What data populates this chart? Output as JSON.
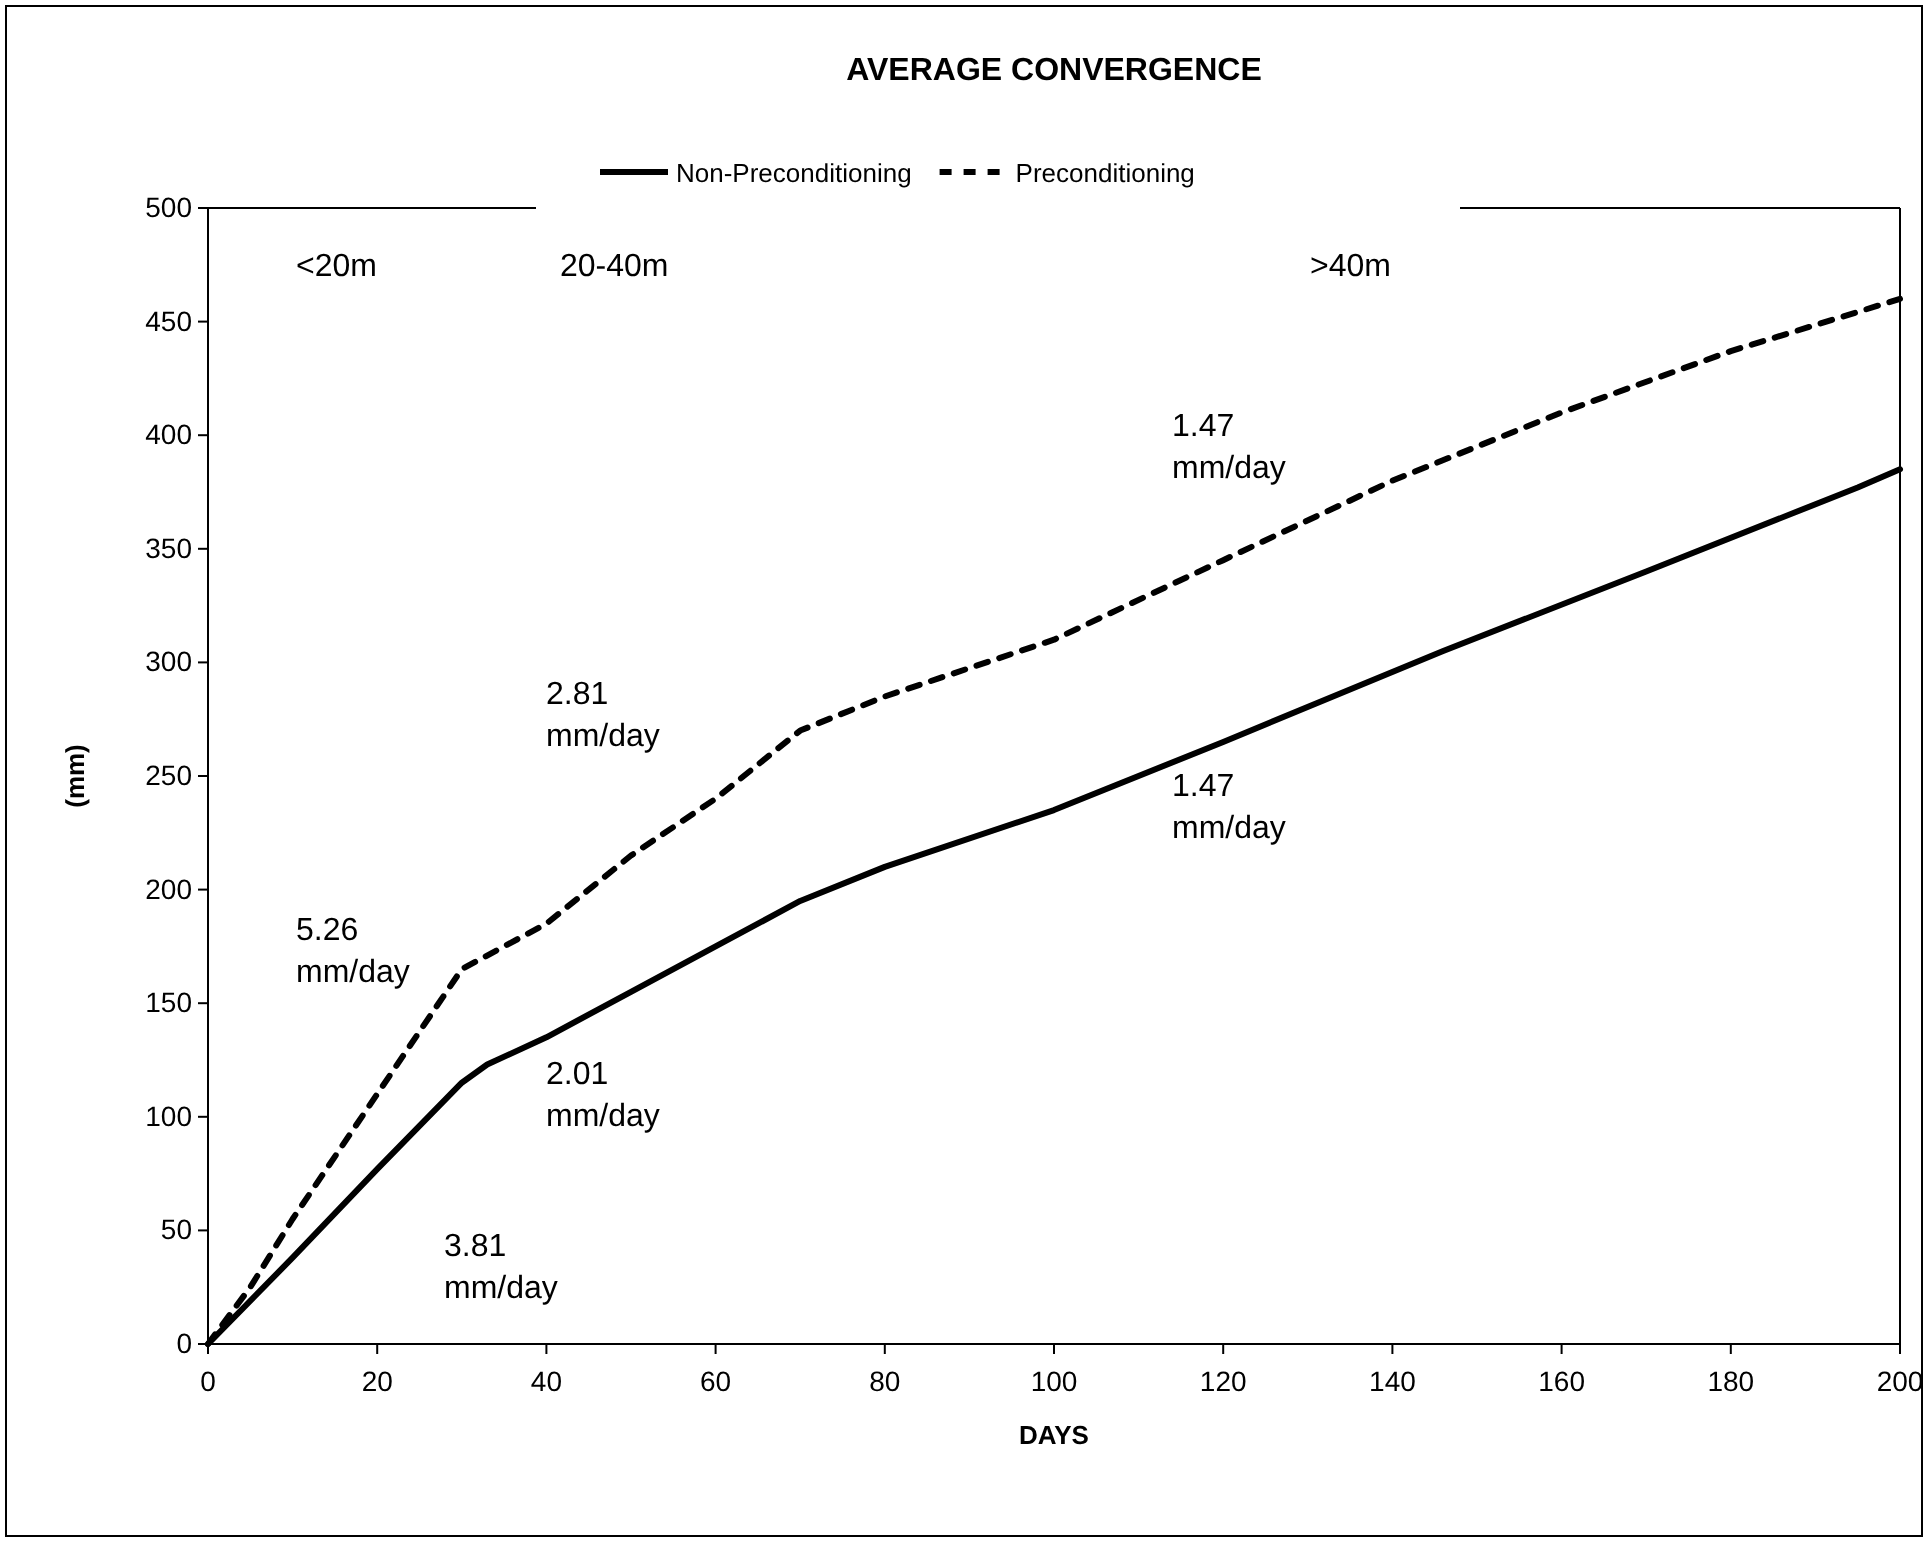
{
  "chart_data": {
    "type": "line",
    "title": "AVERAGE CONVERGENCE",
    "xlabel": "DAYS",
    "ylabel": "(mm)",
    "xlim": [
      0,
      200
    ],
    "xticks": [
      0,
      20,
      40,
      60,
      80,
      100,
      120,
      140,
      160,
      180,
      200
    ],
    "ylim": [
      0,
      500
    ],
    "yticks": [
      0,
      50,
      100,
      150,
      200,
      250,
      300,
      350,
      400,
      450,
      500
    ],
    "grid": false,
    "legend": "top",
    "marker": "none",
    "series": [
      {
        "name": "Non-Preconditioning",
        "color": "#000000",
        "line_style": "solid",
        "x": [
          0,
          10,
          20,
          30,
          33,
          40,
          50,
          60,
          70,
          80,
          100,
          120,
          146,
          170,
          195,
          200
        ],
        "values": [
          0,
          38,
          77,
          115,
          123,
          135,
          155,
          175,
          195,
          210,
          235,
          265,
          305,
          340,
          377,
          385
        ]
      },
      {
        "name": "Preconditioning",
        "color": "#000000",
        "line_style": "dashed",
        "x": [
          0,
          5,
          10,
          20,
          30,
          40,
          50,
          60,
          70,
          80,
          100,
          120,
          140,
          160,
          180,
          200
        ],
        "values": [
          0,
          25,
          55,
          110,
          165,
          185,
          215,
          240,
          270,
          285,
          310,
          345,
          380,
          410,
          437,
          460
        ]
      }
    ],
    "annotations": [
      "<20m",
      "20-40m",
      ">40m",
      "5.26 mm/day",
      "3.81 mm/day",
      "2.01 mm/day",
      "2.81 mm/day",
      "1.47 mm/day",
      "1.47 mm/day"
    ]
  }
}
